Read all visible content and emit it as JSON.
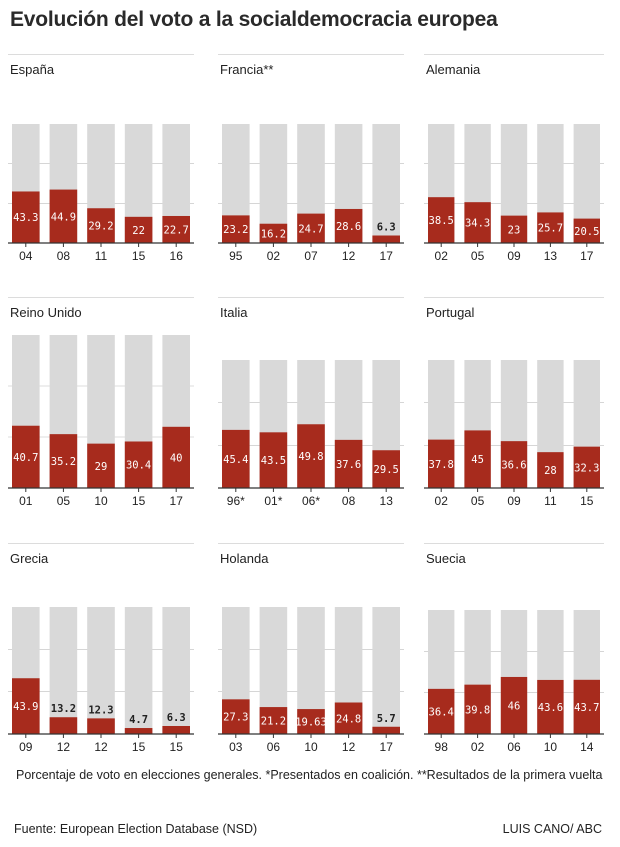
{
  "title": "Evolución del voto a la socialdemocracia europea",
  "note": "Porcentaje de voto en elecciones generales. *Presentados en coalición. **Resultados de la primera vuelta",
  "source": "Fuente: European Election Database (NSD)",
  "credit": "LUIS CANO/ ABC",
  "colors": {
    "bar": "#a72b1d",
    "background_bar": "#d9d9d9",
    "label_inside": "#ffffff",
    "label_outside": "#222222",
    "axis": "#333333"
  },
  "chart_data": [
    {
      "type": "bar",
      "title": "España",
      "categories": [
        "04",
        "08",
        "11",
        "15",
        "16"
      ],
      "values": [
        43.3,
        44.9,
        29.2,
        22,
        22.7
      ],
      "labels": [
        "43.3",
        "44.9",
        "29.2",
        "22",
        "22.7"
      ],
      "ylim": [
        0,
        100
      ]
    },
    {
      "type": "bar",
      "title": "Francia**",
      "categories": [
        "95",
        "02",
        "07",
        "12",
        "17"
      ],
      "values": [
        23.2,
        16.2,
        24.7,
        28.6,
        6.3
      ],
      "labels": [
        "23.2",
        "16.2",
        "24.7",
        "28.6",
        "6.3"
      ],
      "ylim": [
        0,
        100
      ]
    },
    {
      "type": "bar",
      "title": "Alemania",
      "categories": [
        "02",
        "05",
        "09",
        "13",
        "17"
      ],
      "values": [
        38.5,
        34.3,
        23,
        25.7,
        20.5
      ],
      "labels": [
        "38.5",
        "34.3",
        "23",
        "25.7",
        "20.5"
      ],
      "ylim": [
        0,
        100
      ]
    },
    {
      "type": "bar",
      "title": "Reino Unido",
      "categories": [
        "01",
        "05",
        "10",
        "15",
        "17"
      ],
      "values": [
        40.7,
        35.2,
        29,
        30.4,
        40
      ],
      "labels": [
        "40.7",
        "35.2",
        "29",
        "30.4",
        "40"
      ],
      "ylim": [
        0,
        100
      ]
    },
    {
      "type": "bar",
      "title": "Italia",
      "categories": [
        "96*",
        "01*",
        "06*",
        "08",
        "13"
      ],
      "values": [
        45.4,
        43.5,
        49.8,
        37.6,
        29.5
      ],
      "labels": [
        "45.4",
        "43.5",
        "49.8",
        "37.6",
        "29.5"
      ],
      "ylim": [
        0,
        100
      ]
    },
    {
      "type": "bar",
      "title": "Portugal",
      "categories": [
        "02",
        "05",
        "09",
        "11",
        "15"
      ],
      "values": [
        37.8,
        45,
        36.6,
        28,
        32.3
      ],
      "labels": [
        "37.8",
        "45",
        "36.6",
        "28",
        "32.3"
      ],
      "ylim": [
        0,
        100
      ]
    },
    {
      "type": "bar",
      "title": "Grecia",
      "categories": [
        "09",
        "12",
        "12",
        "15",
        "15"
      ],
      "values": [
        43.9,
        13.2,
        12.3,
        4.7,
        6.3
      ],
      "labels": [
        "43.9",
        "13.2",
        "12.3",
        "4.7",
        "6.3"
      ],
      "ylim": [
        0,
        100
      ]
    },
    {
      "type": "bar",
      "title": "Holanda",
      "categories": [
        "03",
        "06",
        "10",
        "12",
        "17"
      ],
      "values": [
        27.3,
        21.2,
        19.63,
        24.8,
        5.7
      ],
      "labels": [
        "27.3",
        "21.2",
        "19.63",
        "24.8",
        "5.7"
      ],
      "ylim": [
        0,
        100
      ]
    },
    {
      "type": "bar",
      "title": "Suecia",
      "categories": [
        "98",
        "02",
        "06",
        "10",
        "14"
      ],
      "values": [
        36.4,
        39.8,
        46,
        43.6,
        43.7
      ],
      "labels": [
        "36.4",
        "39.8",
        "46",
        "43.6",
        "43.7"
      ],
      "ylim": [
        0,
        100
      ]
    }
  ]
}
